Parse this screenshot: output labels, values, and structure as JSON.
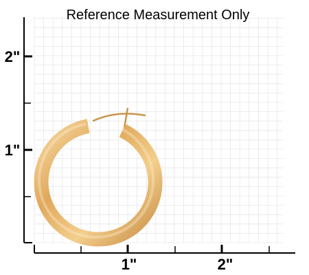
{
  "title": "Reference Measurement Only",
  "y_axis": {
    "labels": [
      "2\"",
      "1\""
    ]
  },
  "x_axis": {
    "labels": [
      "1\"",
      "2\""
    ]
  }
}
